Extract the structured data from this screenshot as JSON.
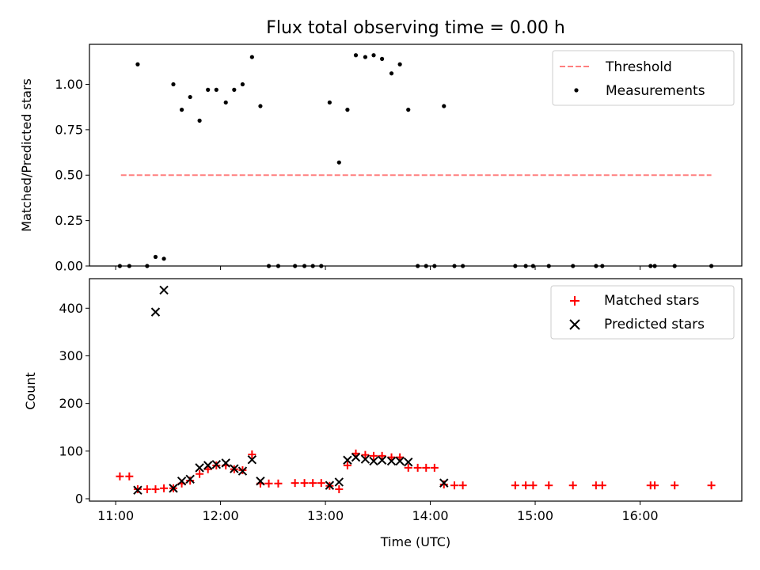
{
  "title": "Flux total observing time = 0.00 h",
  "colors": {
    "threshold": "#ff7f7f",
    "measurements": "#000000",
    "matched": "#ff0000",
    "predicted": "#000000"
  },
  "chart_data": [
    {
      "type": "scatter",
      "panel": "top",
      "ylabel": "Matched/Predicted stars",
      "xlabel": "",
      "ylim": [
        0,
        1.22
      ],
      "yticks": [
        0.0,
        0.25,
        0.5,
        0.75,
        1.0,
        1.25
      ],
      "ytick_labels": [
        "0.00",
        "0.25",
        "0.50",
        "0.75",
        "1.00"
      ],
      "xlim": [
        10.75,
        16.97
      ],
      "xticks": [
        11,
        12,
        13,
        14,
        15,
        16
      ],
      "legend_position": "top-right",
      "grid": false,
      "threshold": {
        "name": "Threshold",
        "y": 0.5,
        "x": [
          11.05,
          16.68
        ],
        "style": "dashed"
      },
      "series": [
        {
          "name": "Measurements",
          "marker": "dot",
          "x": [
            11.04,
            11.13,
            11.21,
            11.3,
            11.38,
            11.46,
            11.55,
            11.63,
            11.71,
            11.8,
            11.88,
            11.96,
            12.05,
            12.13,
            12.21,
            12.3,
            12.38,
            12.46,
            12.55,
            12.71,
            12.8,
            12.88,
            12.96,
            13.04,
            13.13,
            13.21,
            13.29,
            13.38,
            13.46,
            13.54,
            13.63,
            13.71,
            13.79,
            13.88,
            13.96,
            14.04,
            14.13,
            14.23,
            14.31,
            14.81,
            14.91,
            14.98,
            15.13,
            15.36,
            15.58,
            15.64,
            16.1,
            16.14,
            16.33,
            16.68
          ],
          "y": [
            0.0,
            0.0,
            1.11,
            0.0,
            0.05,
            0.04,
            1.0,
            0.86,
            0.93,
            0.8,
            0.97,
            0.97,
            0.9,
            0.97,
            1.0,
            1.15,
            0.88,
            0.0,
            0.0,
            0.0,
            0.0,
            0.0,
            0.0,
            0.9,
            0.57,
            0.86,
            1.16,
            1.15,
            1.16,
            1.14,
            1.06,
            1.11,
            0.86,
            0.0,
            0.0,
            0.0,
            0.88,
            0.0,
            0.0,
            0.0,
            0.0,
            0.0,
            0.0,
            0.0,
            0.0,
            0.0,
            0.0,
            0.0,
            0.0,
            0.0
          ]
        }
      ]
    },
    {
      "type": "scatter",
      "panel": "bottom",
      "ylabel": "Count",
      "xlabel": "Time (UTC)",
      "ylim": [
        -5,
        462
      ],
      "yticks": [
        0,
        100,
        200,
        300,
        400
      ],
      "xlim": [
        10.75,
        16.97
      ],
      "xticks": [
        11,
        12,
        13,
        14,
        15,
        16
      ],
      "xtick_labels": [
        "11:00",
        "12:00",
        "13:00",
        "14:00",
        "15:00",
        "16:00"
      ],
      "legend_position": "top-right",
      "grid": false,
      "series": [
        {
          "name": "Matched stars",
          "marker": "plus",
          "x": [
            11.04,
            11.13,
            11.21,
            11.3,
            11.38,
            11.46,
            11.55,
            11.63,
            11.71,
            11.8,
            11.88,
            11.96,
            12.05,
            12.13,
            12.21,
            12.3,
            12.38,
            12.46,
            12.55,
            12.71,
            12.8,
            12.88,
            12.96,
            13.04,
            13.13,
            13.21,
            13.29,
            13.38,
            13.46,
            13.54,
            13.63,
            13.71,
            13.79,
            13.88,
            13.96,
            14.04,
            14.13,
            14.23,
            14.31,
            14.81,
            14.91,
            14.98,
            15.13,
            15.36,
            15.58,
            15.64,
            16.1,
            16.14,
            16.33,
            16.68
          ],
          "y": [
            47,
            47,
            20,
            20,
            20,
            22,
            22,
            32,
            38,
            52,
            62,
            70,
            70,
            62,
            60,
            93,
            32,
            32,
            32,
            33,
            33,
            33,
            33,
            27,
            20,
            70,
            95,
            92,
            90,
            90,
            87,
            87,
            65,
            65,
            65,
            65,
            30,
            28,
            28,
            28,
            28,
            28,
            28,
            28,
            28,
            28,
            28,
            28,
            28,
            28
          ]
        },
        {
          "name": "Predicted stars",
          "marker": "x",
          "x": [
            11.21,
            11.38,
            11.46,
            11.55,
            11.63,
            11.71,
            11.8,
            11.88,
            11.96,
            12.05,
            12.13,
            12.21,
            12.3,
            12.38,
            13.04,
            13.13,
            13.21,
            13.29,
            13.38,
            13.46,
            13.54,
            13.63,
            13.71,
            13.79,
            14.13
          ],
          "y": [
            18,
            392,
            438,
            22,
            37,
            41,
            65,
            70,
            72,
            75,
            63,
            58,
            82,
            37,
            28,
            35,
            81,
            87,
            83,
            79,
            81,
            79,
            79,
            77,
            33
          ]
        }
      ]
    }
  ]
}
